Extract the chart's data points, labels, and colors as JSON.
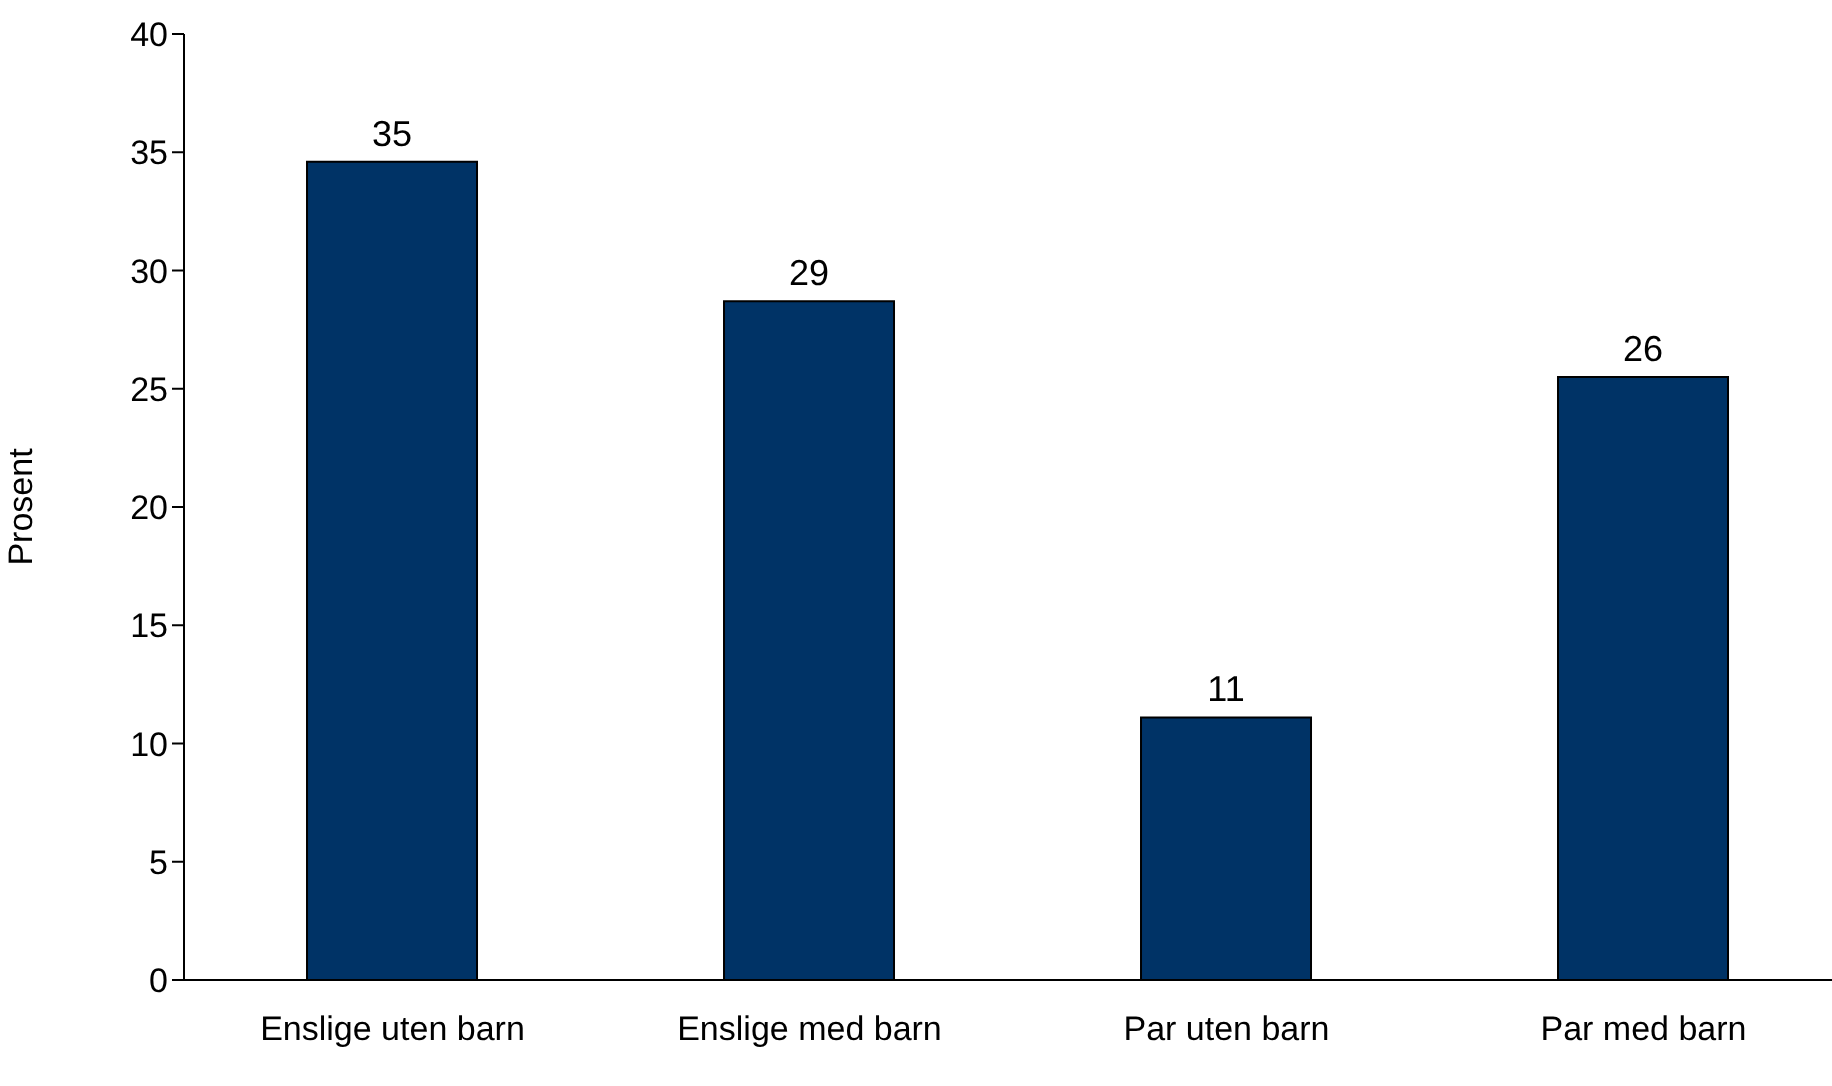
{
  "chart_data": {
    "type": "bar",
    "ylabel": "Prosent",
    "categories": [
      "Enslige uten barn",
      "Enslige med barn",
      "Par uten barn",
      "Par med barn"
    ],
    "values": [
      34.6,
      28.7,
      11.1,
      25.5
    ],
    "value_labels": [
      "35",
      "29",
      "11",
      "26"
    ],
    "color": "#003366",
    "ylim": [
      0,
      40
    ],
    "yticks": [
      0,
      5,
      10,
      15,
      20,
      25,
      30,
      35,
      40
    ],
    "grid": false,
    "legend": false
  }
}
